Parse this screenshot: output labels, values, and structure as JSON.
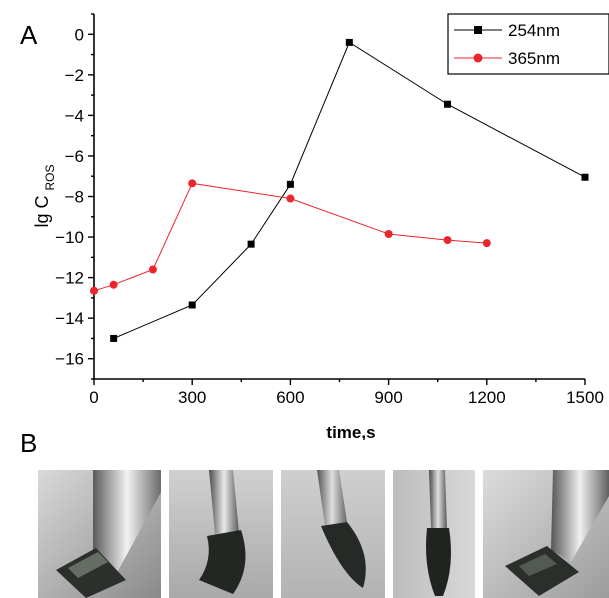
{
  "panels": {
    "a_label": "A",
    "b_label": "B"
  },
  "chart_data": {
    "type": "line",
    "xlabel": "time,s",
    "ylabel_main": "lg C",
    "ylabel_sub": "ROS",
    "xlim": [
      0,
      1500
    ],
    "ylim": [
      -17,
      1
    ],
    "x_ticks": [
      0,
      300,
      600,
      900,
      1200,
      1500
    ],
    "y_ticks": [
      0,
      -2,
      -4,
      -6,
      -8,
      -10,
      -12,
      -14,
      -16
    ],
    "grid": false,
    "legend_position": "top-right",
    "series": [
      {
        "name": "254nm",
        "color": "#000000",
        "marker": "square",
        "x": [
          60,
          300,
          480,
          600,
          780,
          1080,
          1500
        ],
        "y": [
          -15.0,
          -13.35,
          -10.35,
          -7.4,
          -0.4,
          -3.45,
          -7.05
        ]
      },
      {
        "name": "365nm",
        "color": "#e8262b",
        "marker": "circle",
        "x": [
          0,
          60,
          180,
          300,
          600,
          900,
          1080,
          1200
        ],
        "y": [
          -12.65,
          -12.35,
          -11.6,
          -7.35,
          -8.1,
          -9.85,
          -10.15,
          -10.3
        ]
      }
    ]
  },
  "photos": [
    {
      "name": "photo-1",
      "description_icon": "film-flat-photo"
    },
    {
      "name": "photo-2",
      "description_icon": "film-bent-photo"
    },
    {
      "name": "photo-3",
      "description_icon": "film-curled-photo"
    },
    {
      "name": "photo-4",
      "description_icon": "film-rolled-photo"
    },
    {
      "name": "photo-5",
      "description_icon": "film-recovered-photo"
    }
  ]
}
